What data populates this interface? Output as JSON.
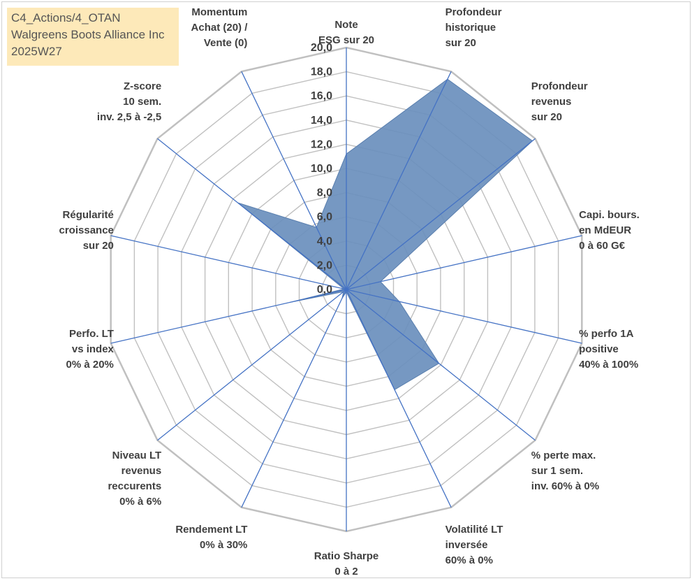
{
  "info": {
    "line1": "C4_Actions/4_OTAN",
    "line2": "Walgreens Boots Alliance Inc",
    "line3": "2025W27"
  },
  "chart_data": {
    "type": "radar",
    "title": "",
    "r_range": [
      0,
      20
    ],
    "r_ticks": [
      "0,0",
      "2,0",
      "4,0",
      "6,0",
      "8,0",
      "10,0",
      "12,0",
      "14,0",
      "16,0",
      "18,0",
      "20,0"
    ],
    "grid": true,
    "axes": [
      [
        "Note",
        "ESG sur 20"
      ],
      [
        "Profondeur",
        "historique",
        "sur 20"
      ],
      [
        "Profondeur",
        "revenus",
        "sur 20"
      ],
      [
        "Capi. bours.",
        "en MdEUR",
        "0 à 60 G€"
      ],
      [
        "% perfo 1A",
        "positive",
        "40% à 100%"
      ],
      [
        "% perte max.",
        "sur 1 sem.",
        "inv. 60% à 0%"
      ],
      [
        "Volatilité LT",
        "inversée",
        "60% à 0%"
      ],
      [
        "Ratio Sharpe",
        "0 à 2"
      ],
      [
        "Rendement LT",
        "0% à 30%"
      ],
      [
        "Niveau LT",
        "revenus",
        "reccurents",
        "0% à 6%"
      ],
      [
        "Perfo. LT",
        "vs index",
        "0% à 20%"
      ],
      [
        "Régularité",
        "croissance",
        "sur 20"
      ],
      [
        "Z-score",
        "10 sem.",
        "inv. 2,5 à -2,5"
      ],
      [
        "Momentum",
        "Achat (20) /",
        "Vente (0)"
      ]
    ],
    "values": [
      11.2,
      19.3,
      19.7,
      2.9,
      4.5,
      9.8,
      9.2,
      0.2,
      0.8,
      0.3,
      4.8,
      0.2,
      11.5,
      5.7
    ],
    "series_color": "#6a8fbd",
    "grid_color": "#c0c0c0",
    "axis_color": "#4472c4"
  }
}
